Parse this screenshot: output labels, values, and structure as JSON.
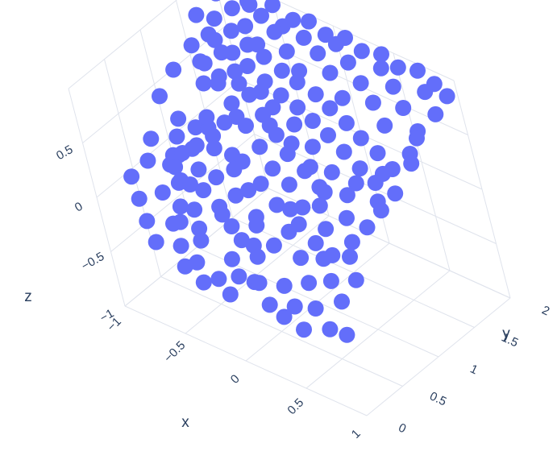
{
  "chart_data": {
    "type": "scatter",
    "title": "",
    "marker_color": "#636efa",
    "axes": {
      "x": {
        "label": "x",
        "ticks": [
          "−1",
          "−0.5",
          "0",
          "0.5",
          "1"
        ]
      },
      "y": {
        "label": "y",
        "ticks": [
          "0",
          "0.5",
          "1",
          "1.5",
          "2"
        ]
      },
      "z": {
        "label": "z",
        "ticks": [
          "−1",
          "−0.5",
          "0",
          "0.5"
        ]
      }
    },
    "grid": true,
    "points": [
      [
        -0.88,
        0.92,
        -0.05
      ],
      [
        -0.85,
        0.82,
        0.02
      ],
      [
        -0.9,
        0.98,
        0.08
      ],
      [
        -0.78,
        0.72,
        0.0
      ],
      [
        -0.7,
        0.62,
        -0.05
      ],
      [
        -0.62,
        0.55,
        0.05
      ],
      [
        -0.72,
        0.9,
        0.1
      ],
      [
        -0.8,
        1.1,
        0.15
      ],
      [
        -0.95,
        0.88,
        -0.15
      ],
      [
        -0.66,
        0.7,
        0.2
      ],
      [
        -0.58,
        0.42,
        -0.1
      ],
      [
        -0.5,
        0.5,
        0.1
      ],
      [
        -0.45,
        0.58,
        0.22
      ],
      [
        -0.4,
        0.35,
        0.0
      ],
      [
        -0.32,
        0.25,
        -0.08
      ],
      [
        -0.55,
        0.75,
        0.3
      ],
      [
        -0.48,
        0.88,
        0.35
      ],
      [
        -0.6,
        1.0,
        0.3
      ],
      [
        -0.42,
        0.98,
        0.45
      ],
      [
        -0.35,
        0.7,
        0.4
      ],
      [
        -0.25,
        0.15,
        -0.1
      ],
      [
        -0.2,
        0.4,
        0.1
      ],
      [
        -0.28,
        0.55,
        0.25
      ],
      [
        -0.15,
        0.62,
        0.35
      ],
      [
        -0.1,
        0.5,
        0.2
      ],
      [
        -0.05,
        0.3,
        0.05
      ],
      [
        0.02,
        0.12,
        -0.12
      ],
      [
        0.1,
        0.05,
        -0.2
      ],
      [
        0.05,
        0.25,
        0.0
      ],
      [
        0.12,
        0.38,
        0.1
      ],
      [
        0.2,
        0.2,
        -0.05
      ],
      [
        0.25,
        0.08,
        -0.2
      ],
      [
        0.3,
        0.3,
        0.05
      ],
      [
        0.35,
        0.45,
        0.12
      ],
      [
        0.42,
        0.15,
        -0.18
      ],
      [
        0.48,
        0.35,
        0.0
      ],
      [
        0.55,
        0.05,
        -0.25
      ],
      [
        0.6,
        0.22,
        -0.1
      ],
      [
        0.65,
        0.4,
        0.05
      ],
      [
        0.7,
        0.1,
        -0.22
      ],
      [
        0.75,
        0.3,
        -0.05
      ],
      [
        0.82,
        0.5,
        0.1
      ],
      [
        0.88,
        0.2,
        -0.12
      ],
      [
        0.92,
        0.38,
        0.0
      ],
      [
        0.97,
        0.05,
        -0.3
      ],
      [
        0.78,
        0.62,
        0.15
      ],
      [
        0.68,
        0.75,
        0.25
      ],
      [
        0.58,
        0.6,
        0.18
      ],
      [
        0.5,
        0.7,
        0.3
      ],
      [
        0.42,
        0.85,
        0.35
      ],
      [
        0.35,
        0.68,
        0.22
      ],
      [
        0.28,
        0.9,
        0.4
      ],
      [
        0.2,
        0.78,
        0.3
      ],
      [
        0.12,
        0.95,
        0.45
      ],
      [
        0.05,
        0.82,
        0.35
      ],
      [
        -0.02,
        1.05,
        0.5
      ],
      [
        -0.1,
        0.92,
        0.42
      ],
      [
        -0.18,
        1.15,
        0.55
      ],
      [
        -0.26,
        1.02,
        0.48
      ],
      [
        -0.34,
        1.25,
        0.6
      ],
      [
        -0.42,
        1.12,
        0.55
      ],
      [
        -0.5,
        1.35,
        0.68
      ],
      [
        -0.58,
        1.22,
        0.6
      ],
      [
        -0.66,
        1.45,
        0.72
      ],
      [
        -0.74,
        1.32,
        0.65
      ],
      [
        -0.82,
        1.55,
        0.75
      ],
      [
        -0.9,
        1.42,
        0.68
      ],
      [
        -0.85,
        1.7,
        0.8
      ],
      [
        -0.78,
        1.85,
        0.85
      ],
      [
        -0.7,
        1.95,
        0.9
      ],
      [
        -0.62,
        1.75,
        0.82
      ],
      [
        -0.55,
        1.88,
        0.88
      ],
      [
        -0.47,
        1.65,
        0.78
      ],
      [
        -0.4,
        1.8,
        0.85
      ],
      [
        -0.32,
        1.95,
        0.92
      ],
      [
        -0.25,
        1.7,
        0.8
      ],
      [
        -0.18,
        1.85,
        0.88
      ],
      [
        -0.1,
        1.6,
        0.75
      ],
      [
        -0.03,
        1.78,
        0.85
      ],
      [
        0.05,
        1.92,
        0.9
      ],
      [
        0.12,
        1.68,
        0.8
      ],
      [
        0.2,
        1.82,
        0.86
      ],
      [
        0.28,
        1.55,
        0.72
      ],
      [
        0.35,
        1.72,
        0.8
      ],
      [
        0.43,
        1.9,
        0.88
      ],
      [
        0.5,
        1.62,
        0.75
      ],
      [
        0.58,
        1.8,
        0.84
      ],
      [
        0.65,
        1.5,
        0.68
      ],
      [
        0.72,
        1.68,
        0.78
      ],
      [
        0.8,
        1.88,
        0.86
      ],
      [
        0.88,
        1.58,
        0.7
      ],
      [
        0.95,
        1.75,
        0.8
      ],
      [
        0.9,
        1.4,
        0.6
      ],
      [
        0.82,
        1.25,
        0.5
      ],
      [
        0.75,
        1.1,
        0.42
      ],
      [
        0.68,
        1.3,
        0.55
      ],
      [
        0.6,
        1.15,
        0.45
      ],
      [
        0.52,
        1.35,
        0.58
      ],
      [
        0.45,
        1.2,
        0.5
      ],
      [
        0.38,
        1.4,
        0.62
      ],
      [
        0.3,
        1.25,
        0.55
      ],
      [
        0.22,
        1.45,
        0.65
      ],
      [
        0.15,
        1.3,
        0.58
      ],
      [
        0.08,
        1.5,
        0.68
      ],
      [
        0.0,
        1.35,
        0.6
      ],
      [
        -0.08,
        1.52,
        0.7
      ],
      [
        -0.15,
        1.38,
        0.62
      ],
      [
        -0.22,
        1.55,
        0.72
      ],
      [
        -0.3,
        1.42,
        0.65
      ],
      [
        -0.38,
        1.58,
        0.75
      ],
      [
        -0.45,
        1.45,
        0.7
      ],
      [
        -0.52,
        1.6,
        0.78
      ],
      [
        -0.6,
        1.5,
        0.72
      ],
      [
        -0.68,
        1.65,
        0.8
      ],
      [
        -0.75,
        1.52,
        0.75
      ],
      [
        -0.95,
        1.2,
        0.55
      ],
      [
        -0.98,
        1.0,
        0.4
      ],
      [
        -0.92,
        0.7,
        0.2
      ],
      [
        -0.88,
        0.55,
        0.1
      ],
      [
        -0.95,
        0.4,
        0.0
      ],
      [
        -0.85,
        0.3,
        -0.1
      ],
      [
        -0.75,
        0.2,
        -0.2
      ],
      [
        -0.65,
        0.12,
        -0.3
      ],
      [
        -0.55,
        0.25,
        -0.15
      ],
      [
        -0.45,
        0.15,
        -0.25
      ],
      [
        -0.38,
        0.05,
        -0.35
      ],
      [
        -0.3,
        0.1,
        -0.3
      ],
      [
        -0.22,
        0.02,
        -0.4
      ],
      [
        -0.12,
        0.08,
        -0.35
      ],
      [
        0.0,
        0.02,
        -0.4
      ],
      [
        0.15,
        0.15,
        -0.28
      ],
      [
        0.32,
        0.05,
        -0.35
      ],
      [
        0.45,
        0.02,
        -0.38
      ],
      [
        0.62,
        0.0,
        -0.4
      ],
      [
        0.8,
        0.08,
        -0.35
      ],
      [
        0.9,
        0.9,
        0.35
      ],
      [
        0.95,
        1.05,
        0.45
      ],
      [
        0.85,
        0.95,
        0.38
      ],
      [
        0.97,
        1.3,
        0.6
      ],
      [
        0.92,
        1.5,
        0.7
      ],
      [
        0.98,
        1.9,
        0.9
      ],
      [
        0.85,
        1.95,
        0.92
      ],
      [
        0.7,
        1.98,
        0.95
      ],
      [
        0.55,
        1.95,
        0.92
      ],
      [
        0.4,
        1.98,
        0.95
      ],
      [
        0.25,
        1.95,
        0.92
      ],
      [
        0.1,
        1.98,
        0.95
      ],
      [
        -0.05,
        1.95,
        0.92
      ],
      [
        -0.2,
        1.98,
        0.95
      ],
      [
        -0.35,
        1.85,
        0.9
      ],
      [
        -0.5,
        1.98,
        0.95
      ],
      [
        -0.65,
        1.9,
        0.92
      ],
      [
        -0.8,
        1.98,
        0.96
      ],
      [
        -0.92,
        1.88,
        0.9
      ],
      [
        -0.97,
        1.65,
        0.8
      ],
      [
        -0.2,
        0.8,
        0.3
      ],
      [
        0.0,
        0.7,
        0.25
      ],
      [
        0.18,
        0.6,
        0.2
      ],
      [
        0.38,
        0.55,
        0.15
      ],
      [
        0.55,
        0.48,
        0.1
      ],
      [
        0.7,
        0.45,
        0.08
      ],
      [
        0.85,
        0.75,
        0.25
      ],
      [
        0.62,
        0.9,
        0.35
      ],
      [
        0.45,
        1.0,
        0.42
      ],
      [
        0.25,
        1.1,
        0.5
      ],
      [
        0.05,
        1.2,
        0.55
      ],
      [
        -0.15,
        1.25,
        0.58
      ],
      [
        -0.35,
        1.05,
        0.5
      ],
      [
        -0.55,
        0.95,
        0.45
      ],
      [
        -0.7,
        1.2,
        0.55
      ],
      [
        -0.8,
        1.35,
        0.62
      ],
      [
        -0.62,
        1.3,
        0.6
      ],
      [
        -0.45,
        1.3,
        0.62
      ],
      [
        -0.28,
        1.32,
        0.62
      ],
      [
        -0.1,
        1.1,
        0.52
      ],
      [
        0.1,
        1.05,
        0.48
      ],
      [
        0.3,
        0.95,
        0.42
      ],
      [
        0.48,
        0.82,
        0.35
      ],
      [
        0.65,
        1.0,
        0.42
      ],
      [
        0.8,
        1.15,
        0.5
      ],
      [
        -0.35,
        0.45,
        0.15
      ],
      [
        -0.15,
        0.35,
        0.08
      ],
      [
        0.08,
        0.45,
        0.12
      ],
      [
        0.28,
        0.62,
        0.2
      ],
      [
        -0.05,
        0.6,
        0.22
      ],
      [
        0.15,
        0.25,
        0.0
      ],
      [
        -0.28,
        0.8,
        0.32
      ],
      [
        -0.48,
        0.25,
        -0.1
      ],
      [
        -0.68,
        0.38,
        0.0
      ],
      [
        -0.82,
        0.95,
        0.3
      ]
    ]
  }
}
